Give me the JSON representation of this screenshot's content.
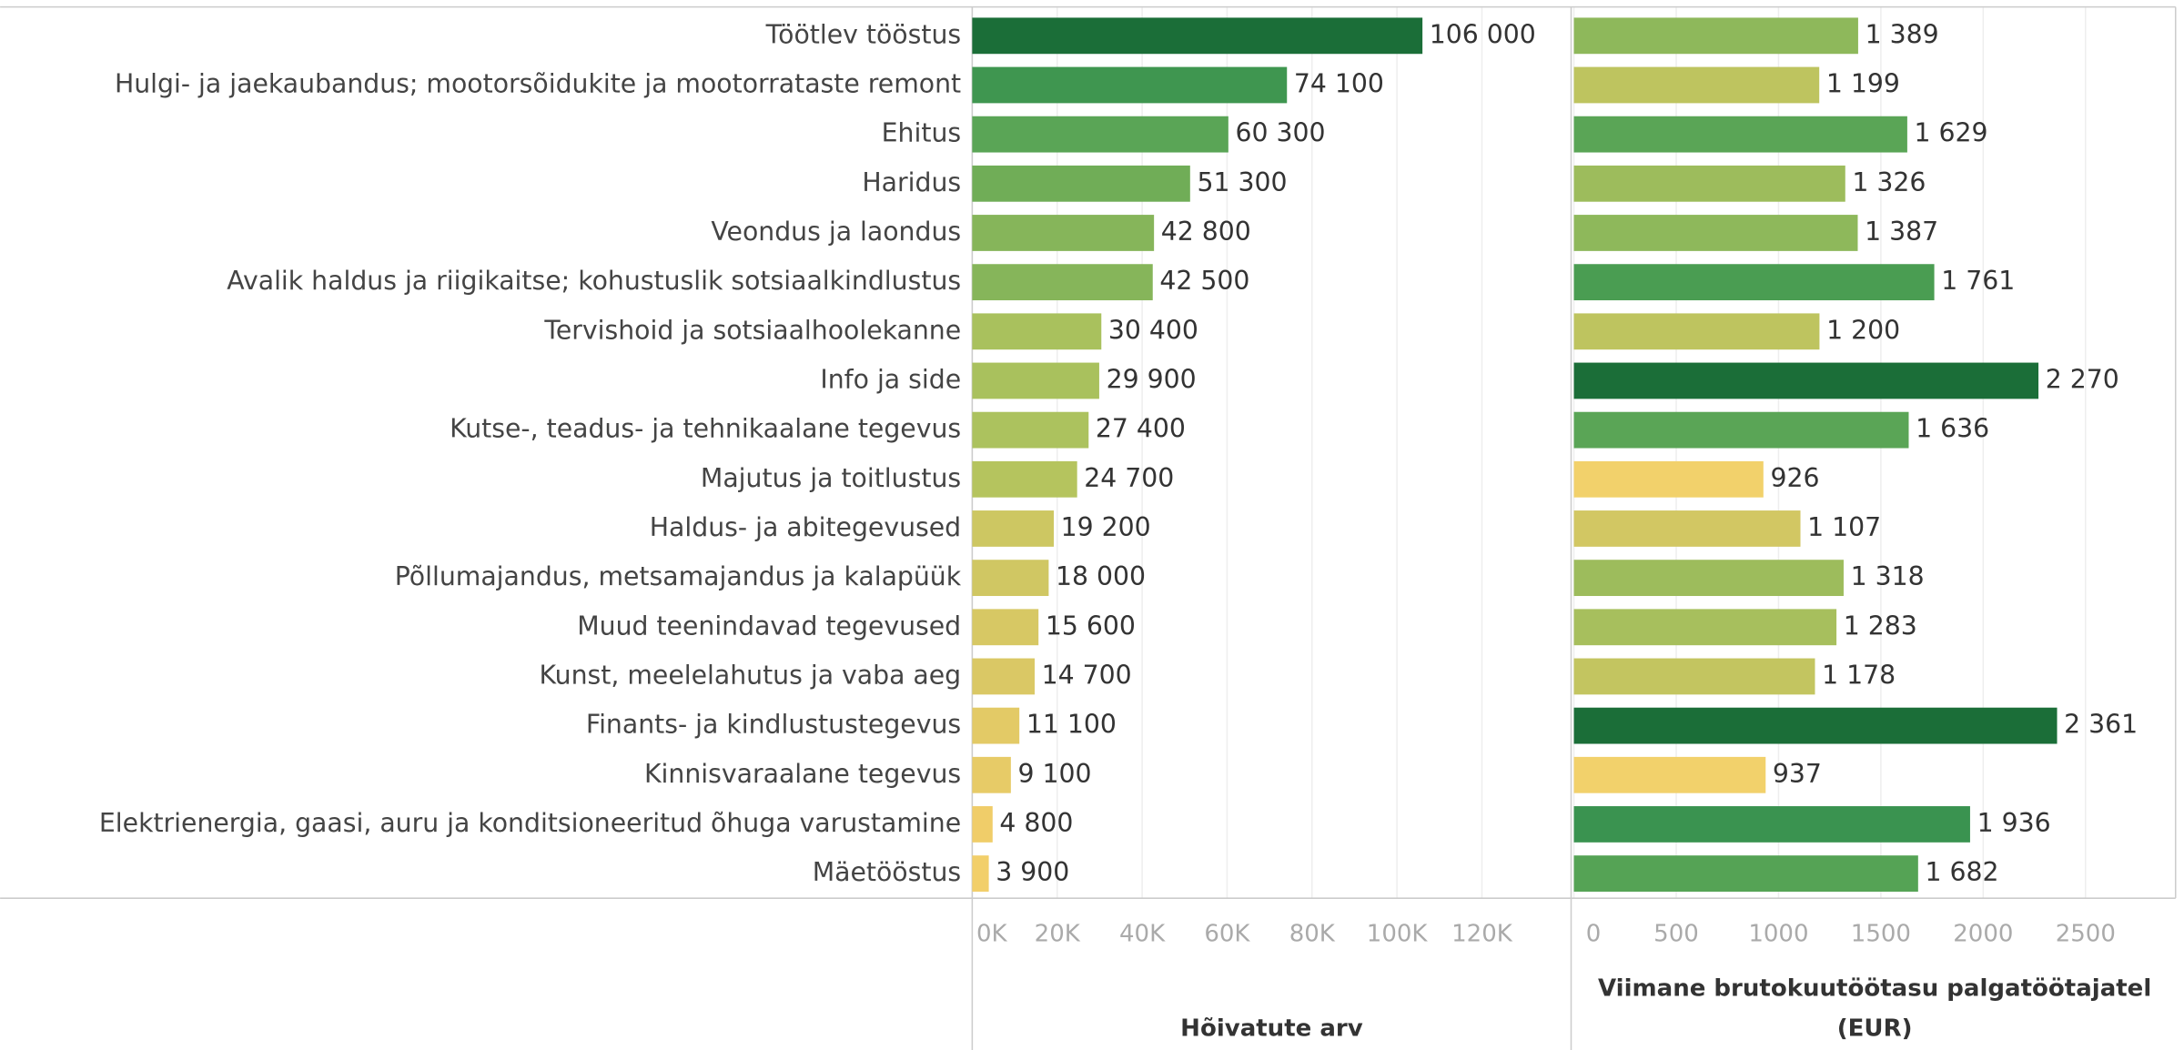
{
  "chart_data": [
    {
      "type": "bar",
      "orientation": "horizontal",
      "categories": [
        "Töötlev tööstus",
        "Hulgi- ja jaekaubandus; mootorsõidukite ja mootorrataste remont",
        "Ehitus",
        "Haridus",
        "Veondus ja laondus",
        "Avalik haldus ja riigikaitse; kohustuslik sotsiaalkindlustus",
        "Tervishoid ja sotsiaalhoolekanne",
        "Info ja side",
        "Kutse-, teadus- ja tehnikaalane tegevus",
        "Majutus ja toitlustus",
        "Haldus- ja abitegevused",
        "Põllumajandus, metsamajandus ja kalapüük",
        "Muud teenindavad tegevused",
        "Kunst, meelelahutus ja vaba aeg",
        "Finants- ja kindlustustegevus",
        "Kinnisvaraalane tegevus",
        "Elektrienergia, gaasi, auru ja konditsioneeritud õhuga varustamine",
        "Mäetööstus"
      ],
      "values": [
        106000,
        74100,
        60300,
        51300,
        42800,
        42500,
        30400,
        29900,
        27400,
        24700,
        19200,
        18000,
        15600,
        14700,
        11100,
        9100,
        4800,
        3900
      ],
      "value_labels": [
        "106 000",
        "74 100",
        "60 300",
        "51 300",
        "42 800",
        "42 500",
        "30 400",
        "29 900",
        "27 400",
        "24 700",
        "19 200",
        "18 000",
        "15 600",
        "14 700",
        "11 100",
        "9 100",
        "4 800",
        "3 900"
      ],
      "colors": [
        "#1b6e38",
        "#3f9650",
        "#5aa556",
        "#70ad57",
        "#86b55a",
        "#86b55a",
        "#a9c15d",
        "#a9c15d",
        "#acc25e",
        "#b5c45e",
        "#cdc762",
        "#d0c763",
        "#d7c864",
        "#dac865",
        "#e3ca66",
        "#e7cb67",
        "#f0cd69",
        "#f2cf6a"
      ],
      "xlabel": "Hõivatute arv",
      "xlim": [
        0,
        141000
      ],
      "xticks": [
        {
          "value": 0,
          "label": "0K"
        },
        {
          "value": 20000,
          "label": "20K"
        },
        {
          "value": 40000,
          "label": "40K"
        },
        {
          "value": 60000,
          "label": "60K"
        },
        {
          "value": 80000,
          "label": "80K"
        },
        {
          "value": 100000,
          "label": "100K"
        },
        {
          "value": 120000,
          "label": "120K"
        }
      ],
      "grid": true
    },
    {
      "type": "bar",
      "orientation": "horizontal",
      "values": [
        1389,
        1199,
        1629,
        1326,
        1387,
        1761,
        1200,
        2270,
        1636,
        926,
        1107,
        1318,
        1283,
        1178,
        2361,
        937,
        1936,
        1682
      ],
      "value_labels": [
        "1 389",
        "1 199",
        "1 629",
        "1 326",
        "1 387",
        "1 761",
        "1 200",
        "2 270",
        "1 636",
        "926",
        "1 107",
        "1 318",
        "1 283",
        "1 178",
        "2 361",
        "937",
        "1 936",
        "1 682"
      ],
      "colors": [
        "#8eb85b",
        "#bec45f",
        "#5aa556",
        "#9dbc5c",
        "#8eb85b",
        "#4a9d52",
        "#bec45f",
        "#1b6e38",
        "#5aa556",
        "#f2d16b",
        "#d2c763",
        "#9dbc5c",
        "#a7bf5d",
        "#c3c560",
        "#1b6e38",
        "#f2d16b",
        "#3a9350",
        "#55a355"
      ],
      "xlabel": "Viimane brutokuutöötasu palgatöötajatel (EUR)",
      "xlim": [
        0,
        2940
      ],
      "xticks": [
        0,
        500,
        1000,
        1500,
        2000,
        2500
      ],
      "grid": true
    }
  ]
}
